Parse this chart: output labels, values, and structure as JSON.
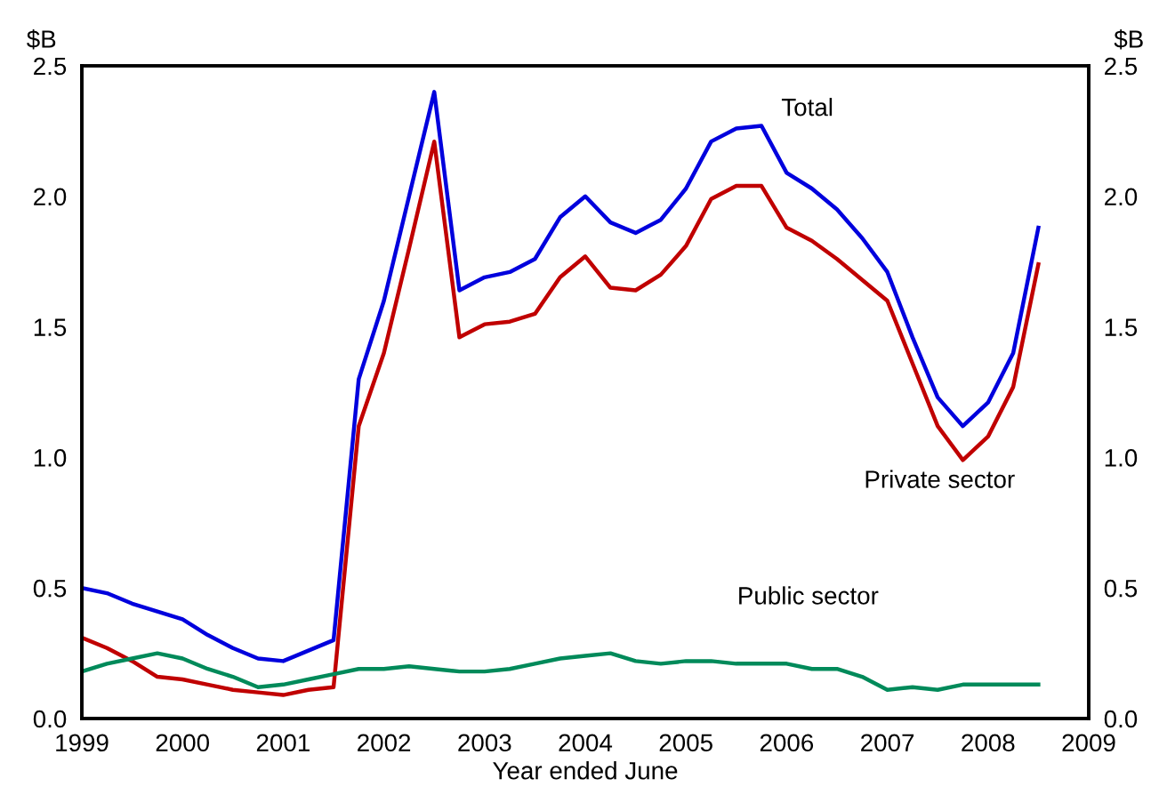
{
  "chart_data": {
    "type": "line",
    "xlabel": "Year ended June",
    "ylabel": "$B",
    "y2label": "$B",
    "x": [
      1999.0,
      1999.25,
      1999.5,
      1999.75,
      2000.0,
      2000.25,
      2000.5,
      2000.75,
      2001.0,
      2001.25,
      2001.5,
      2001.75,
      2002.0,
      2002.25,
      2002.5,
      2002.75,
      2003.0,
      2003.25,
      2003.5,
      2003.75,
      2004.0,
      2004.25,
      2004.5,
      2004.75,
      2005.0,
      2005.25,
      2005.5,
      2005.75,
      2006.0,
      2006.25,
      2006.5,
      2006.75,
      2007.0,
      2007.25,
      2007.5,
      2007.75,
      2008.0,
      2008.25,
      2008.5
    ],
    "series": [
      {
        "name": "Total",
        "color": "#0000dd",
        "values": [
          0.5,
          0.48,
          0.44,
          0.41,
          0.38,
          0.32,
          0.27,
          0.23,
          0.22,
          0.26,
          0.3,
          1.3,
          1.6,
          2.0,
          2.4,
          1.64,
          1.69,
          1.71,
          1.76,
          1.92,
          2.0,
          1.9,
          1.86,
          1.91,
          2.03,
          2.21,
          2.26,
          2.27,
          2.09,
          2.03,
          1.95,
          1.84,
          1.71,
          1.46,
          1.23,
          1.12,
          1.21,
          1.4,
          1.88
        ]
      },
      {
        "name": "Private sector",
        "color": "#c00000",
        "values": [
          0.31,
          0.27,
          0.22,
          0.16,
          0.15,
          0.13,
          0.11,
          0.1,
          0.09,
          0.11,
          0.12,
          1.12,
          1.4,
          1.8,
          2.21,
          1.46,
          1.51,
          1.52,
          1.55,
          1.69,
          1.77,
          1.65,
          1.64,
          1.7,
          1.81,
          1.99,
          2.04,
          2.04,
          1.88,
          1.83,
          1.76,
          1.68,
          1.6,
          1.36,
          1.12,
          0.99,
          1.08,
          1.27,
          1.74
        ]
      },
      {
        "name": "Public sector",
        "color": "#008a5a",
        "values": [
          0.18,
          0.21,
          0.23,
          0.25,
          0.23,
          0.19,
          0.16,
          0.12,
          0.13,
          0.15,
          0.17,
          0.19,
          0.19,
          0.2,
          0.19,
          0.18,
          0.18,
          0.19,
          0.21,
          0.23,
          0.24,
          0.25,
          0.22,
          0.21,
          0.22,
          0.22,
          0.21,
          0.21,
          0.21,
          0.19,
          0.19,
          0.16,
          0.11,
          0.12,
          0.11,
          0.13,
          0.13,
          0.13,
          0.13
        ]
      }
    ],
    "xlim": [
      1999,
      2009
    ],
    "xticks": [
      1999,
      2000,
      2001,
      2002,
      2003,
      2004,
      2005,
      2006,
      2007,
      2008,
      2009
    ],
    "ylim": [
      0,
      2.5
    ],
    "yticks": [
      {
        "value": 0,
        "label": "0.0"
      },
      0.5,
      {
        "value": 1,
        "label": "1.0"
      },
      1.5,
      {
        "value": 2,
        "label": "2.0"
      },
      2.5
    ],
    "y2lim": [
      0,
      2.5
    ],
    "y2ticks": [
      {
        "value": 0,
        "label": "0.0"
      },
      0.5,
      {
        "value": 1,
        "label": "1.0"
      },
      1.5,
      {
        "value": 2,
        "label": "2.0"
      },
      2.5
    ],
    "grid": false,
    "legend": false,
    "marker": "none",
    "line_style": "solid"
  }
}
